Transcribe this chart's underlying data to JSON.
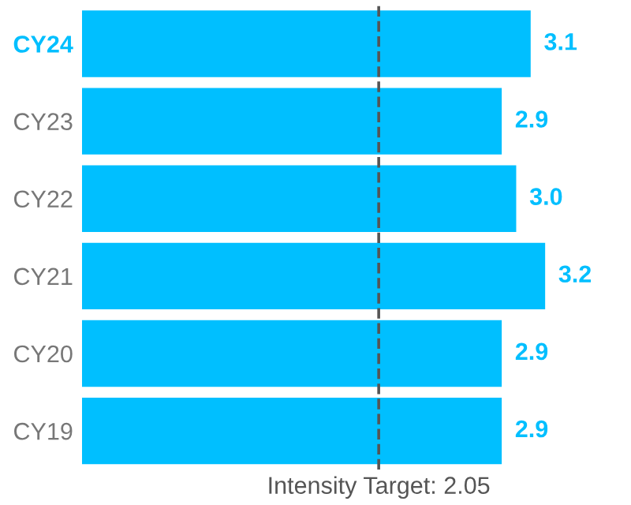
{
  "chart_data": {
    "type": "bar",
    "orientation": "horizontal",
    "categories": [
      "CY24",
      "CY23",
      "CY22",
      "CY21",
      "CY20",
      "CY19"
    ],
    "values": [
      3.1,
      2.9,
      3.0,
      3.2,
      2.9,
      2.9
    ],
    "value_labels": [
      "3.1",
      "2.9",
      "3.0",
      "3.2",
      "2.9",
      "2.9"
    ],
    "color": "#00bfff",
    "tick_labels": "y",
    "grid": false,
    "ref_lines": [
      {
        "axis": "x",
        "value": 2.05,
        "label": "Intensity Target: 2.05",
        "color": "#555555",
        "line_style": "dashed"
      }
    ]
  }
}
